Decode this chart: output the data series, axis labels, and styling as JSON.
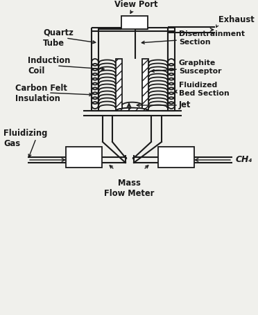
{
  "bg_color": "#f0f0ec",
  "line_color": "#1a1a1a",
  "labels": {
    "view_port": "View Port",
    "exhaust": "Exhaust",
    "quartz_tube": "Quartz\nTube",
    "disentrainment": "Disentrainment\nSection",
    "induction_coil": "Induction\nCoil",
    "graphite_susceptor": "Graphite\nSusceptor",
    "carbon_felt": "Carbon Felt\nInsulation",
    "fluidized_bed": "Fluidized\nBed Section",
    "jet": "Jet",
    "fluidizing_gas": "Fluidizing\nGas",
    "mass_flow_meter": "Mass\nFlow Meter",
    "ch4": "CH₄"
  },
  "layout": {
    "figsize": [
      3.72,
      4.55
    ],
    "dpi": 100,
    "xlim": [
      0,
      372
    ],
    "ylim": [
      0,
      455
    ]
  }
}
